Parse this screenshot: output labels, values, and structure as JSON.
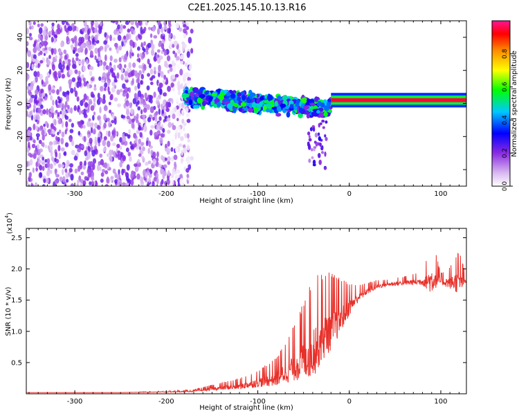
{
  "title": "C2E1.2025.145.10.13.R16",
  "chart_data": [
    {
      "type": "heatmap",
      "xlabel": "Height of straight line (km)",
      "ylabel": "Frequency (Hz)",
      "xlim": [
        -353,
        128
      ],
      "ylim": [
        -50,
        50
      ],
      "x_ticks": [
        -300,
        -200,
        -100,
        0,
        100
      ],
      "x_tick_labels": [
        "-300",
        "-200",
        "-100",
        "0",
        "100"
      ],
      "y_ticks": [
        -40,
        -20,
        0,
        20,
        40
      ],
      "y_tick_labels": [
        "-40",
        "-20",
        "0",
        "20",
        "40"
      ],
      "colorbar": {
        "label": "Normalized spectral amplitude",
        "range": [
          0,
          1
        ],
        "ticks": [
          0,
          0.2,
          0.4,
          0.6,
          0.8
        ],
        "tick_labels": [
          "0.0",
          "0.2",
          "0.4",
          "0.6",
          "0.8"
        ],
        "colors": [
          "#ffffff",
          "#8a2be2",
          "#0000ff",
          "#00c8ff",
          "#00ff00",
          "#ffff00",
          "#ff8c00",
          "#ff1493"
        ]
      },
      "regions": [
        {
          "x_range": [
            -353,
            -172
          ],
          "freq_range": [
            -50,
            50
          ],
          "amplitude": [
            0.05,
            0.25
          ]
        },
        {
          "x_range": [
            -180,
            -20
          ],
          "freq_center": [
            4,
            -3
          ],
          "freq_halfwidth": 4,
          "amplitude": [
            0.2,
            0.6
          ]
        },
        {
          "x_range": [
            -20,
            128
          ],
          "freq_center": 2,
          "freq_halfwidth": 2,
          "amplitude": [
            0.8,
            1.0
          ]
        }
      ]
    },
    {
      "type": "line",
      "xlabel": "Height of straight line (km)",
      "ylabel": "SNR (10 * v/v)",
      "scale_note": "(x10",
      "scale_exp": "4",
      "scale_close": ")",
      "xlim": [
        -353,
        128
      ],
      "ylim": [
        0,
        2.65
      ],
      "x_ticks": [
        -300,
        -200,
        -100,
        0,
        100
      ],
      "x_tick_labels": [
        "-300",
        "-200",
        "-100",
        "0",
        "100"
      ],
      "y_ticks": [
        0.5,
        1.0,
        1.5,
        2.0,
        2.5
      ],
      "y_tick_labels": [
        "0.5",
        "1.0",
        "1.5",
        "2.0",
        "2.5"
      ],
      "color": "#e8302a",
      "series": [
        {
          "x": [
            -353,
            -300,
            -250,
            -200,
            -170,
            -150,
            -120,
            -100,
            -80,
            -60,
            -40,
            -30,
            -20,
            -10,
            0,
            10,
            20,
            30,
            40,
            60,
            80,
            90,
            95,
            100,
            110,
            120,
            128
          ],
          "y": [
            0.02,
            0.02,
            0.02,
            0.03,
            0.04,
            0.08,
            0.12,
            0.18,
            0.25,
            0.45,
            0.7,
            0.9,
            1.05,
            1.2,
            1.4,
            1.55,
            1.65,
            1.72,
            1.75,
            1.78,
            1.8,
            1.82,
            1.85,
            1.8,
            1.78,
            1.8,
            1.8
          ],
          "spread": [
            0.0,
            0.0,
            0.0,
            0.01,
            0.02,
            0.05,
            0.1,
            0.15,
            0.25,
            0.5,
            0.9,
            0.8,
            0.7,
            0.5,
            0.3,
            0.15,
            0.1,
            0.08,
            0.06,
            0.08,
            0.12,
            0.45,
            0.3,
            0.1,
            0.2,
            0.4,
            0.05
          ]
        }
      ]
    }
  ]
}
